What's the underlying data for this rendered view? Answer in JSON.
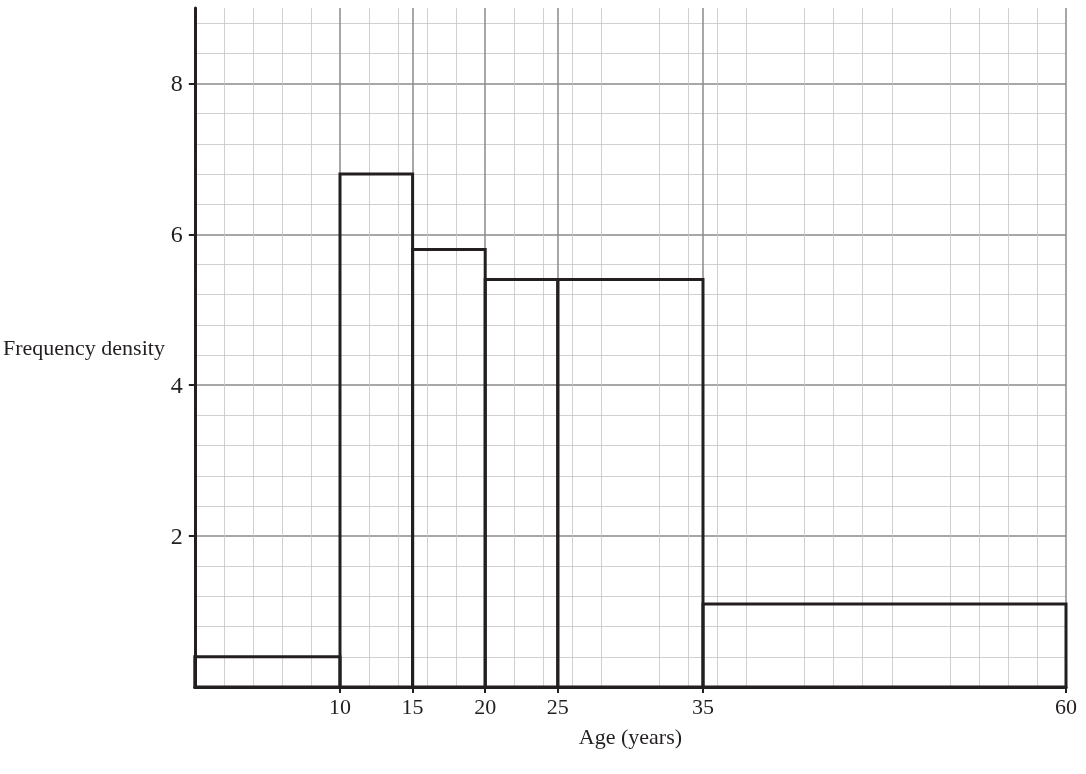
{
  "chart_data": {
    "type": "histogram",
    "xlabel": "Age (years)",
    "ylabel": "Frequency density",
    "bins": [
      0,
      10,
      15,
      20,
      25,
      35,
      60
    ],
    "values": [
      0.4,
      6.8,
      5.8,
      5.4,
      5.4,
      1.1
    ],
    "color": "#231f20",
    "xlim": [
      0,
      60
    ],
    "xticks": [
      10,
      15,
      20,
      25,
      35,
      60
    ],
    "ylim": [
      0,
      9
    ],
    "yticks": [
      2,
      4,
      6,
      8
    ],
    "grid": true
  }
}
